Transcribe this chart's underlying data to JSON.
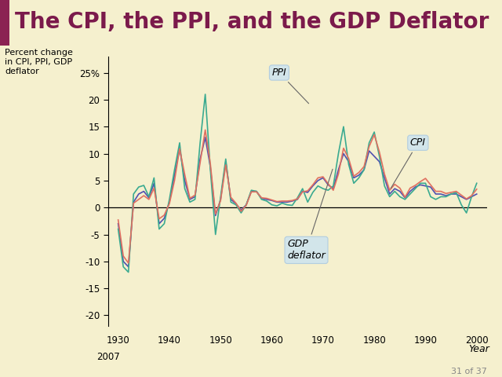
{
  "title": "The CPI, the PPI, and the GDP Deflator",
  "ylabel": "Percent change\nin CPI, PPI, GDP\ndeflator",
  "xlabel": "Year",
  "background_color": "#f5f0ce",
  "title_bg_color": "#f0e8f0",
  "title_color": "#7b1a4b",
  "title_bar_color": "#8b2252",
  "title_fontsize": 20,
  "years": [
    1930,
    1931,
    1932,
    1933,
    1934,
    1935,
    1936,
    1937,
    1938,
    1939,
    1940,
    1941,
    1942,
    1943,
    1944,
    1945,
    1946,
    1947,
    1948,
    1949,
    1950,
    1951,
    1952,
    1953,
    1954,
    1955,
    1956,
    1957,
    1958,
    1959,
    1960,
    1961,
    1962,
    1963,
    1964,
    1965,
    1966,
    1967,
    1968,
    1969,
    1970,
    1971,
    1972,
    1973,
    1974,
    1975,
    1976,
    1977,
    1978,
    1979,
    1980,
    1981,
    1982,
    1983,
    1984,
    1985,
    1986,
    1987,
    1988,
    1989,
    1990,
    1991,
    1992,
    1993,
    1994,
    1995,
    1996,
    1997,
    1998,
    1999,
    2000
  ],
  "cpi": [
    -2.3,
    -9.0,
    -10.3,
    0.8,
    1.5,
    2.2,
    1.5,
    3.6,
    -2.1,
    -1.4,
    0.7,
    5.0,
    10.9,
    6.1,
    1.7,
    2.3,
    8.3,
    14.4,
    8.1,
    -1.2,
    1.3,
    7.9,
    1.9,
    0.8,
    -0.7,
    0.4,
    2.9,
    2.9,
    1.8,
    1.7,
    1.4,
    1.1,
    1.2,
    1.2,
    1.3,
    1.6,
    2.9,
    3.1,
    4.2,
    5.5,
    5.7,
    4.4,
    3.2,
    6.2,
    11.0,
    9.1,
    5.8,
    6.5,
    7.6,
    11.3,
    13.5,
    10.3,
    6.2,
    3.2,
    4.3,
    3.6,
    1.9,
    3.6,
    4.1,
    4.8,
    5.4,
    4.2,
    3.0,
    3.0,
    2.6,
    2.8,
    3.0,
    2.3,
    1.6,
    2.2,
    3.4
  ],
  "ppi": [
    -4.0,
    -11.0,
    -12.0,
    2.5,
    3.8,
    4.1,
    2.0,
    5.5,
    -4.0,
    -3.0,
    1.5,
    7.0,
    12.0,
    3.5,
    1.0,
    1.5,
    12.0,
    21.0,
    7.0,
    -5.0,
    2.0,
    9.0,
    1.0,
    0.5,
    -1.0,
    0.5,
    3.2,
    3.0,
    1.5,
    1.2,
    0.5,
    0.3,
    0.8,
    0.5,
    0.4,
    1.8,
    3.5,
    1.0,
    2.8,
    4.0,
    3.5,
    3.2,
    4.0,
    10.0,
    15.0,
    8.0,
    4.5,
    5.5,
    7.0,
    12.0,
    14.0,
    9.5,
    4.0,
    2.0,
    3.0,
    2.0,
    1.5,
    2.5,
    3.5,
    4.5,
    4.5,
    2.0,
    1.5,
    2.0,
    2.0,
    2.5,
    2.8,
    0.5,
    -1.0,
    2.0,
    4.5
  ],
  "gdp_deflator": [
    -3.0,
    -10.0,
    -11.0,
    1.0,
    2.5,
    3.0,
    1.8,
    4.5,
    -3.0,
    -2.0,
    1.0,
    6.0,
    11.0,
    5.0,
    1.5,
    2.0,
    9.0,
    13.0,
    7.5,
    -1.5,
    1.5,
    8.5,
    1.5,
    0.7,
    -0.5,
    0.5,
    3.0,
    3.0,
    1.7,
    1.5,
    1.3,
    1.0,
    1.0,
    1.0,
    1.2,
    1.5,
    3.0,
    2.8,
    4.0,
    5.0,
    5.5,
    4.2,
    3.5,
    7.0,
    10.0,
    8.5,
    5.5,
    6.0,
    7.0,
    10.5,
    9.5,
    8.5,
    5.5,
    2.5,
    3.5,
    3.0,
    1.8,
    3.0,
    3.8,
    4.2,
    4.0,
    3.8,
    2.5,
    2.5,
    2.2,
    2.5,
    2.5,
    2.0,
    1.5,
    2.0,
    2.5
  ],
  "cpi_color": "#e07060",
  "ppi_color": "#3aaa90",
  "gdp_color": "#5050b0",
  "ylim": [
    -22,
    28
  ],
  "yticks": [
    -20,
    -15,
    -10,
    -5,
    0,
    5,
    10,
    15,
    20,
    25
  ],
  "ytick_labels": [
    "-20",
    "-15",
    "-10",
    "-5",
    "0",
    "5",
    "10",
    "15",
    "20",
    "25%"
  ],
  "xlim": [
    1928,
    2002
  ],
  "xticks": [
    1930,
    1940,
    1950,
    1960,
    1970,
    1980,
    1990,
    2000
  ],
  "footer_text": "31 of 37",
  "annot_bbox_color": "#cce4f0",
  "annot_bbox_edge": "#aac8e0"
}
